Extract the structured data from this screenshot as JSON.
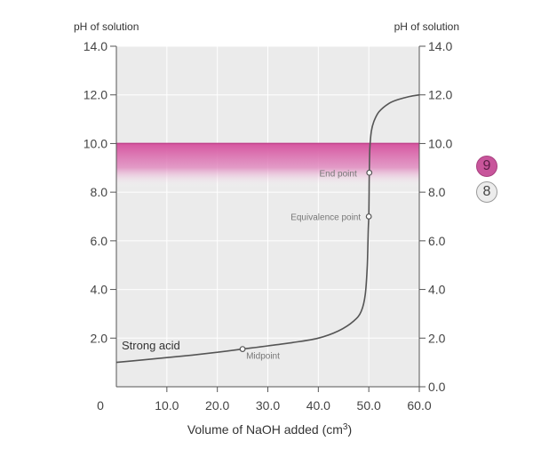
{
  "chart_data": {
    "type": "line",
    "ylabel_left": "pH of solution",
    "ylabel_right": "pH of solution",
    "xlabel_main": "Volume of NaOH added (cm",
    "xlabel_sup": "3",
    "xlabel_end": ")",
    "xlim": [
      0,
      60
    ],
    "ylim": [
      0,
      14
    ],
    "x_ticks": [
      10,
      20,
      30,
      40,
      50,
      60
    ],
    "x_tick_labels": [
      "10.0",
      "20.0",
      "30.0",
      "40.0",
      "50.0",
      "60.0"
    ],
    "x_origin_label": "0",
    "y_left_ticks": [
      2,
      4,
      6,
      8,
      10,
      12,
      14
    ],
    "y_left_tick_labels": [
      "2.0",
      "4.0",
      "6.0",
      "8.0",
      "10.0",
      "12.0",
      "14.0"
    ],
    "y_right_ticks": [
      0,
      2,
      4,
      6,
      8,
      10,
      12,
      14
    ],
    "y_right_tick_labels": [
      "0.0",
      "2.0",
      "4.0",
      "6.0",
      "8.0",
      "10.0",
      "12.0",
      "14.0"
    ],
    "grid": true,
    "indicator_band": {
      "ph_low": 8.2,
      "ph_high": 10.0,
      "color": "#d6559f"
    },
    "series": [
      {
        "label": "Strong acid",
        "points": [
          [
            0,
            1.0
          ],
          [
            5,
            1.1
          ],
          [
            10,
            1.2
          ],
          [
            15,
            1.3
          ],
          [
            20,
            1.42
          ],
          [
            25,
            1.55
          ],
          [
            30,
            1.68
          ],
          [
            35,
            1.82
          ],
          [
            40,
            2.0
          ],
          [
            44,
            2.3
          ],
          [
            47,
            2.7
          ],
          [
            48.5,
            3.1
          ],
          [
            49.3,
            3.8
          ],
          [
            49.7,
            5.0
          ],
          [
            49.9,
            6.5
          ],
          [
            50,
            7.0
          ],
          [
            50.05,
            8.0
          ],
          [
            50.1,
            8.8
          ],
          [
            50.2,
            9.8
          ],
          [
            50.5,
            10.5
          ],
          [
            51,
            10.9
          ],
          [
            52,
            11.3
          ],
          [
            54,
            11.65
          ],
          [
            56,
            11.82
          ],
          [
            58,
            11.93
          ],
          [
            60,
            12.0
          ]
        ]
      }
    ],
    "annotations": [
      {
        "label": "End point",
        "x": 50.1,
        "y": 8.8
      },
      {
        "label": "Equivalence point",
        "x": 50,
        "y": 7.0
      },
      {
        "label": "Midpoint",
        "x": 25,
        "y": 1.55
      }
    ]
  },
  "pagination": {
    "items": [
      {
        "label": "9",
        "active": true
      },
      {
        "label": "8",
        "active": false
      }
    ]
  }
}
